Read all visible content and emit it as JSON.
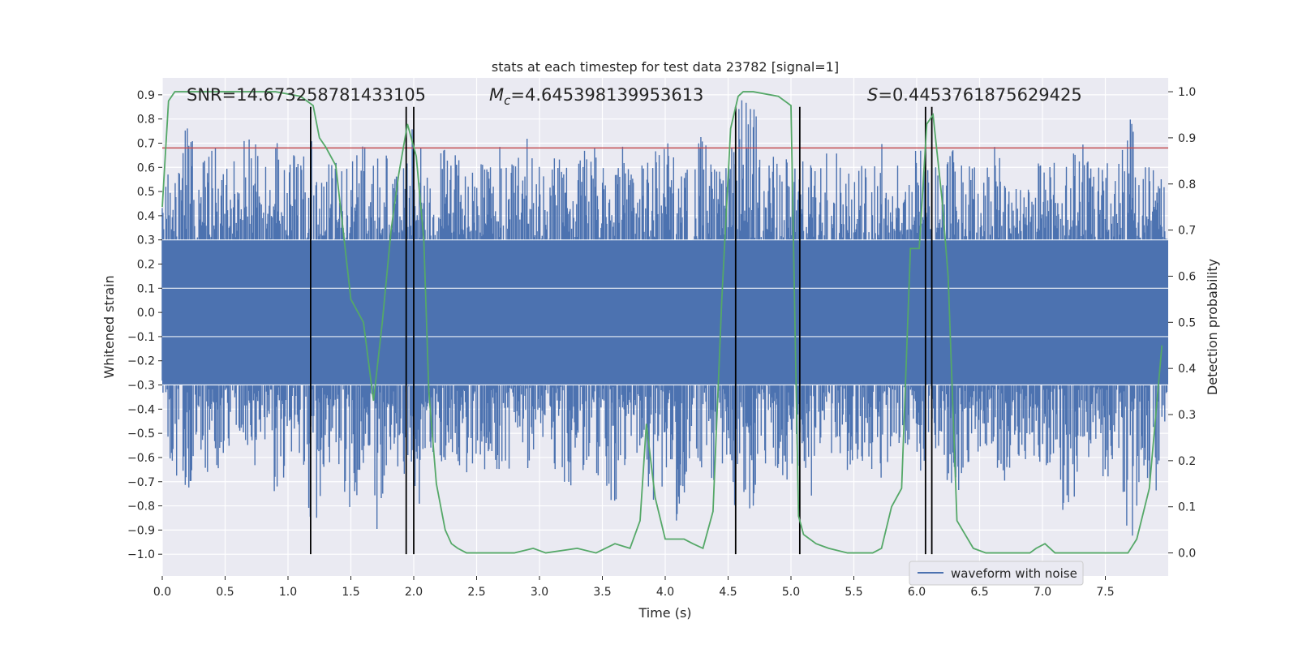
{
  "chart_data": {
    "type": "line",
    "title": "stats at each timestep for test data 23782 [signal=1]",
    "xlabel": "Time (s)",
    "ylabel": "Whitened strain",
    "y2label": "Detection probability",
    "xlim": [
      0.0,
      8.0
    ],
    "ylim": [
      -1.09,
      0.97
    ],
    "y2lim": [
      -0.05,
      1.03
    ],
    "grid": true,
    "legend": {
      "position": "lower right",
      "entries": [
        "waveform with noise"
      ]
    },
    "x_ticks": [
      0.0,
      0.5,
      1.0,
      1.5,
      2.0,
      2.5,
      3.0,
      3.5,
      4.0,
      4.5,
      5.0,
      5.5,
      6.0,
      6.5,
      7.0,
      7.5
    ],
    "x_tick_labels": [
      "0.0",
      "0.5",
      "1.0",
      "1.5",
      "2.0",
      "2.5",
      "3.0",
      "3.5",
      "4.0",
      "4.5",
      "5.0",
      "5.5",
      "6.0",
      "6.5",
      "7.0",
      "7.5"
    ],
    "y_ticks": [
      0.9,
      0.8,
      0.7,
      0.6,
      0.5,
      0.4,
      0.3,
      0.2,
      0.1,
      0.0,
      -0.1,
      -0.2,
      -0.3,
      -0.4,
      -0.5,
      -0.6,
      -0.7,
      -0.8,
      -0.9,
      -1.0
    ],
    "y_tick_labels": [
      "0.9",
      "0.8",
      "0.7",
      "0.6",
      "0.5",
      "0.4",
      "0.3",
      "0.2",
      "0.1",
      "0.0",
      "−0.1",
      "−0.2",
      "−0.3",
      "−0.4",
      "−0.5",
      "−0.6",
      "−0.7",
      "−0.8",
      "−0.9",
      "−1.0"
    ],
    "y2_ticks": [
      1.0,
      0.9,
      0.8,
      0.7,
      0.6,
      0.5,
      0.4,
      0.3,
      0.2,
      0.1,
      0.0
    ],
    "y2_tick_labels": [
      "1.0",
      "0.9",
      "0.8",
      "0.7",
      "0.6",
      "0.5",
      "0.4",
      "0.3",
      "0.2",
      "0.1",
      "0.0"
    ],
    "annotations": {
      "snr": "SNR=14.673258781433105",
      "mc": "=4.645398139953613",
      "s": "=0.4453761875629425"
    },
    "series": [
      {
        "name": "waveform with noise",
        "axis": "left",
        "color": "#4c72b0",
        "envelope": {
          "x": [
            0.0,
            0.1,
            0.2,
            0.3,
            0.4,
            0.5,
            0.6,
            0.7,
            0.8,
            0.9,
            1.0,
            1.1,
            1.2,
            1.3,
            1.4,
            1.5,
            1.6,
            1.7,
            1.8,
            1.9,
            2.0,
            2.1,
            2.2,
            2.3,
            2.4,
            2.5,
            2.6,
            2.7,
            2.8,
            2.9,
            3.0,
            3.1,
            3.2,
            3.3,
            3.4,
            3.5,
            3.6,
            3.7,
            3.8,
            3.9,
            4.0,
            4.1,
            4.2,
            4.3,
            4.4,
            4.5,
            4.6,
            4.7,
            4.8,
            4.9,
            5.0,
            5.1,
            5.2,
            5.3,
            5.4,
            5.5,
            5.6,
            5.7,
            5.8,
            5.9,
            6.0,
            6.1,
            6.2,
            6.3,
            6.4,
            6.5,
            6.6,
            6.7,
            6.8,
            6.9,
            7.0,
            7.1,
            7.2,
            7.3,
            7.4,
            7.5,
            7.6,
            7.7,
            7.8,
            7.9,
            7.99
          ],
          "ymax": [
            0.55,
            0.62,
            0.78,
            0.6,
            0.75,
            0.58,
            0.68,
            0.78,
            0.6,
            0.7,
            0.72,
            0.62,
            0.72,
            0.6,
            0.65,
            0.62,
            0.7,
            0.78,
            0.62,
            0.6,
            0.78,
            0.6,
            0.65,
            0.7,
            0.58,
            0.62,
            0.6,
            0.7,
            0.6,
            0.72,
            0.6,
            0.65,
            0.62,
            0.6,
            0.72,
            0.62,
            0.6,
            0.75,
            0.6,
            0.65,
            0.72,
            0.62,
            0.6,
            0.75,
            0.62,
            0.6,
            0.88,
            0.85,
            0.68,
            0.62,
            0.7,
            0.62,
            0.6,
            0.72,
            0.62,
            0.6,
            0.65,
            0.75,
            0.6,
            0.62,
            0.7,
            0.6,
            0.6,
            0.68,
            0.6,
            0.62,
            0.7,
            0.62,
            0.6,
            0.65,
            0.6,
            0.62,
            0.6,
            0.72,
            0.6,
            0.62,
            0.6,
            0.8,
            0.6,
            0.6,
            0.5
          ],
          "ymin": [
            -0.45,
            -0.72,
            -0.78,
            -0.6,
            -0.7,
            -0.62,
            -0.55,
            -0.65,
            -0.6,
            -0.8,
            -0.62,
            -0.6,
            -0.92,
            -0.7,
            -0.62,
            -0.88,
            -0.62,
            -0.92,
            -0.6,
            -0.65,
            -0.72,
            -0.88,
            -0.62,
            -0.6,
            -0.65,
            -0.7,
            -0.62,
            -0.7,
            -0.62,
            -0.65,
            -0.6,
            -0.62,
            -0.75,
            -0.68,
            -0.62,
            -0.7,
            -0.82,
            -0.65,
            -0.6,
            -0.78,
            -0.7,
            -0.88,
            -0.62,
            -0.65,
            -0.7,
            -0.6,
            -0.98,
            -0.8,
            -0.62,
            -0.7,
            -0.72,
            -0.6,
            -0.85,
            -0.62,
            -0.7,
            -0.6,
            -0.62,
            -0.7,
            -0.6,
            -0.62,
            -0.7,
            -0.62,
            -0.6,
            -0.82,
            -0.62,
            -0.6,
            -0.65,
            -0.72,
            -0.62,
            -0.6,
            -0.65,
            -0.6,
            -0.95,
            -0.62,
            -0.6,
            -0.7,
            -0.65,
            -0.98,
            -0.62,
            -0.8,
            -0.6
          ]
        }
      },
      {
        "name": "",
        "axis": "right",
        "color": "#55a868",
        "x": [
          0.0,
          0.05,
          0.1,
          0.2,
          0.3,
          0.5,
          0.7,
          0.9,
          1.1,
          1.2,
          1.25,
          1.3,
          1.38,
          1.43,
          1.5,
          1.6,
          1.68,
          1.75,
          1.82,
          1.88,
          1.95,
          2.02,
          2.08,
          2.12,
          2.18,
          2.25,
          2.3,
          2.35,
          2.42,
          2.5,
          2.8,
          2.95,
          3.05,
          3.3,
          3.45,
          3.6,
          3.72,
          3.8,
          3.85,
          3.92,
          4.0,
          4.08,
          4.15,
          4.22,
          4.3,
          4.38,
          4.45,
          4.52,
          4.58,
          4.62,
          4.7,
          4.9,
          5.0,
          5.06,
          5.1,
          5.2,
          5.3,
          5.45,
          5.6,
          5.65,
          5.72,
          5.8,
          5.88,
          5.95,
          6.02,
          6.08,
          6.13,
          6.2,
          6.25,
          6.32,
          6.45,
          6.55,
          6.75,
          6.9,
          6.95,
          7.02,
          7.1,
          7.3,
          7.55,
          7.68,
          7.75,
          7.85,
          7.95
        ],
        "y": [
          0.75,
          0.98,
          1.0,
          1.0,
          1.0,
          1.0,
          1.0,
          1.0,
          0.99,
          0.97,
          0.9,
          0.88,
          0.84,
          0.72,
          0.55,
          0.5,
          0.33,
          0.5,
          0.7,
          0.82,
          0.93,
          0.86,
          0.68,
          0.35,
          0.15,
          0.05,
          0.02,
          0.01,
          0.0,
          0.0,
          0.0,
          0.01,
          0.0,
          0.01,
          0.0,
          0.02,
          0.01,
          0.07,
          0.28,
          0.12,
          0.03,
          0.03,
          0.03,
          0.02,
          0.01,
          0.09,
          0.55,
          0.92,
          0.99,
          1.0,
          1.0,
          0.99,
          0.97,
          0.08,
          0.04,
          0.02,
          0.01,
          0.0,
          0.0,
          0.0,
          0.01,
          0.1,
          0.14,
          0.66,
          0.66,
          0.93,
          0.95,
          0.77,
          0.6,
          0.07,
          0.01,
          0.0,
          0.0,
          0.0,
          0.01,
          0.02,
          0.0,
          0.0,
          0.0,
          0.0,
          0.03,
          0.14,
          0.45
        ]
      }
    ],
    "threshold_line": {
      "y": 0.68,
      "color": "#c44e52",
      "axis": "left"
    },
    "vertical_lines": [
      1.18,
      1.94,
      2.0,
      4.56,
      5.07,
      6.07,
      6.12
    ],
    "vertical_line_range": [
      -1.0,
      0.85
    ]
  }
}
